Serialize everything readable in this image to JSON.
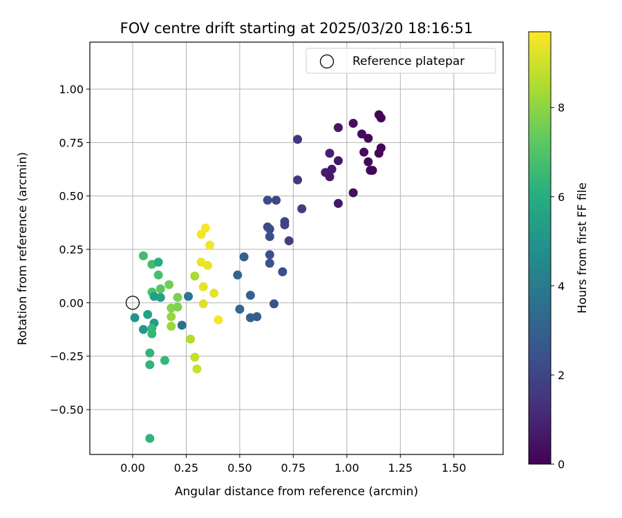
{
  "chart_data": {
    "type": "scatter",
    "title": "FOV centre drift starting at 2025/03/20 18:16:51",
    "xlabel": "Angular distance from reference (arcmin)",
    "ylabel": "Rotation from reference (arcmin)",
    "xlim": [
      -0.2,
      1.73
    ],
    "ylim": [
      -0.71,
      1.22
    ],
    "xticks": [
      0.0,
      0.25,
      0.5,
      0.75,
      1.0,
      1.25,
      1.5
    ],
    "xtick_labels": [
      "0.00",
      "0.25",
      "0.50",
      "0.75",
      "1.00",
      "1.25",
      "1.50"
    ],
    "yticks": [
      -0.5,
      -0.25,
      0.0,
      0.25,
      0.5,
      0.75,
      1.0
    ],
    "ytick_labels": [
      "−0.50",
      "−0.25",
      "0.00",
      "0.25",
      "0.50",
      "0.75",
      "1.00"
    ],
    "grid": true,
    "legend": {
      "placement": "top-right",
      "entries": [
        "Reference platepar"
      ]
    },
    "reference_point": {
      "x": 0.0,
      "y": 0.0,
      "label": "Reference platepar"
    },
    "colorbar": {
      "label": "Hours from first FF file",
      "colormap": "viridis",
      "range": [
        0,
        9.7
      ],
      "ticks": [
        0,
        2,
        4,
        6,
        8
      ],
      "tick_labels": [
        "0",
        "2",
        "4",
        "6",
        "8"
      ]
    },
    "points": [
      {
        "x": 1.15,
        "y": 0.88,
        "h": 0.1
      },
      {
        "x": 1.16,
        "y": 0.865,
        "h": 0.1
      },
      {
        "x": 1.03,
        "y": 0.84,
        "h": 0.4
      },
      {
        "x": 0.96,
        "y": 0.82,
        "h": 0.6
      },
      {
        "x": 1.07,
        "y": 0.79,
        "h": 0.3
      },
      {
        "x": 1.1,
        "y": 0.77,
        "h": 0.2
      },
      {
        "x": 1.16,
        "y": 0.725,
        "h": 0.1
      },
      {
        "x": 1.15,
        "y": 0.7,
        "h": 0.1
      },
      {
        "x": 1.08,
        "y": 0.705,
        "h": 0.3
      },
      {
        "x": 0.92,
        "y": 0.7,
        "h": 0.8
      },
      {
        "x": 0.96,
        "y": 0.665,
        "h": 0.6
      },
      {
        "x": 1.1,
        "y": 0.66,
        "h": 0.2
      },
      {
        "x": 1.11,
        "y": 0.62,
        "h": 0.2
      },
      {
        "x": 1.12,
        "y": 0.62,
        "h": 0.2
      },
      {
        "x": 0.93,
        "y": 0.625,
        "h": 0.7
      },
      {
        "x": 0.9,
        "y": 0.61,
        "h": 0.8
      },
      {
        "x": 0.92,
        "y": 0.59,
        "h": 0.7
      },
      {
        "x": 1.03,
        "y": 0.515,
        "h": 0.4
      },
      {
        "x": 0.96,
        "y": 0.465,
        "h": 0.6
      },
      {
        "x": 0.77,
        "y": 0.765,
        "h": 1.5
      },
      {
        "x": 0.77,
        "y": 0.575,
        "h": 1.6
      },
      {
        "x": 0.79,
        "y": 0.44,
        "h": 1.7
      },
      {
        "x": 0.63,
        "y": 0.48,
        "h": 2.2
      },
      {
        "x": 0.67,
        "y": 0.48,
        "h": 2.1
      },
      {
        "x": 0.71,
        "y": 0.38,
        "h": 1.9
      },
      {
        "x": 0.71,
        "y": 0.365,
        "h": 1.9
      },
      {
        "x": 0.63,
        "y": 0.355,
        "h": 2.3
      },
      {
        "x": 0.64,
        "y": 0.345,
        "h": 2.3
      },
      {
        "x": 0.64,
        "y": 0.31,
        "h": 2.3
      },
      {
        "x": 0.73,
        "y": 0.29,
        "h": 1.8
      },
      {
        "x": 0.64,
        "y": 0.225,
        "h": 2.4
      },
      {
        "x": 0.64,
        "y": 0.185,
        "h": 2.5
      },
      {
        "x": 0.7,
        "y": 0.145,
        "h": 2.3
      },
      {
        "x": 0.52,
        "y": 0.215,
        "h": 3.0
      },
      {
        "x": 0.49,
        "y": 0.13,
        "h": 3.1
      },
      {
        "x": 0.55,
        "y": 0.035,
        "h": 3.0
      },
      {
        "x": 0.66,
        "y": -0.005,
        "h": 2.4
      },
      {
        "x": 0.5,
        "y": -0.03,
        "h": 3.2
      },
      {
        "x": 0.58,
        "y": -0.065,
        "h": 2.8
      },
      {
        "x": 0.55,
        "y": -0.07,
        "h": 3.0
      },
      {
        "x": 0.26,
        "y": 0.03,
        "h": 3.8
      },
      {
        "x": 0.23,
        "y": -0.105,
        "h": 3.6
      },
      {
        "x": 0.34,
        "y": 0.35,
        "h": 9.6
      },
      {
        "x": 0.32,
        "y": 0.32,
        "h": 9.5
      },
      {
        "x": 0.36,
        "y": 0.27,
        "h": 9.5
      },
      {
        "x": 0.32,
        "y": 0.19,
        "h": 9.4
      },
      {
        "x": 0.35,
        "y": 0.175,
        "h": 9.4
      },
      {
        "x": 0.33,
        "y": 0.075,
        "h": 9.3
      },
      {
        "x": 0.38,
        "y": 0.045,
        "h": 9.3
      },
      {
        "x": 0.33,
        "y": -0.005,
        "h": 9.2
      },
      {
        "x": 0.4,
        "y": -0.08,
        "h": 9.6
      },
      {
        "x": 0.29,
        "y": 0.125,
        "h": 8.4
      },
      {
        "x": 0.27,
        "y": -0.17,
        "h": 8.6
      },
      {
        "x": 0.29,
        "y": -0.255,
        "h": 8.8
      },
      {
        "x": 0.3,
        "y": -0.31,
        "h": 8.9
      },
      {
        "x": 0.17,
        "y": 0.085,
        "h": 7.6
      },
      {
        "x": 0.13,
        "y": 0.065,
        "h": 7.2
      },
      {
        "x": 0.21,
        "y": 0.025,
        "h": 7.7
      },
      {
        "x": 0.21,
        "y": -0.02,
        "h": 7.8
      },
      {
        "x": 0.18,
        "y": -0.025,
        "h": 7.9
      },
      {
        "x": 0.18,
        "y": -0.065,
        "h": 8.1
      },
      {
        "x": 0.18,
        "y": -0.11,
        "h": 8.2
      },
      {
        "x": 0.05,
        "y": 0.22,
        "h": 6.6
      },
      {
        "x": 0.09,
        "y": 0.18,
        "h": 6.7
      },
      {
        "x": 0.12,
        "y": 0.19,
        "h": 6.0
      },
      {
        "x": 0.12,
        "y": 0.13,
        "h": 6.8
      },
      {
        "x": 0.09,
        "y": 0.05,
        "h": 6.9
      },
      {
        "x": 0.1,
        "y": 0.03,
        "h": 5.4
      },
      {
        "x": 0.13,
        "y": 0.025,
        "h": 5.5
      },
      {
        "x": 0.01,
        "y": -0.07,
        "h": 5.0
      },
      {
        "x": 0.07,
        "y": -0.055,
        "h": 5.6
      },
      {
        "x": 0.1,
        "y": -0.095,
        "h": 5.3
      },
      {
        "x": 0.05,
        "y": -0.125,
        "h": 5.1
      },
      {
        "x": 0.09,
        "y": -0.12,
        "h": 6.5
      },
      {
        "x": 0.09,
        "y": -0.145,
        "h": 6.4
      },
      {
        "x": 0.08,
        "y": -0.235,
        "h": 6.3
      },
      {
        "x": 0.15,
        "y": -0.27,
        "h": 6.4
      },
      {
        "x": 0.08,
        "y": -0.29,
        "h": 6.3
      },
      {
        "x": 0.08,
        "y": -0.635,
        "h": 6.3
      }
    ]
  }
}
